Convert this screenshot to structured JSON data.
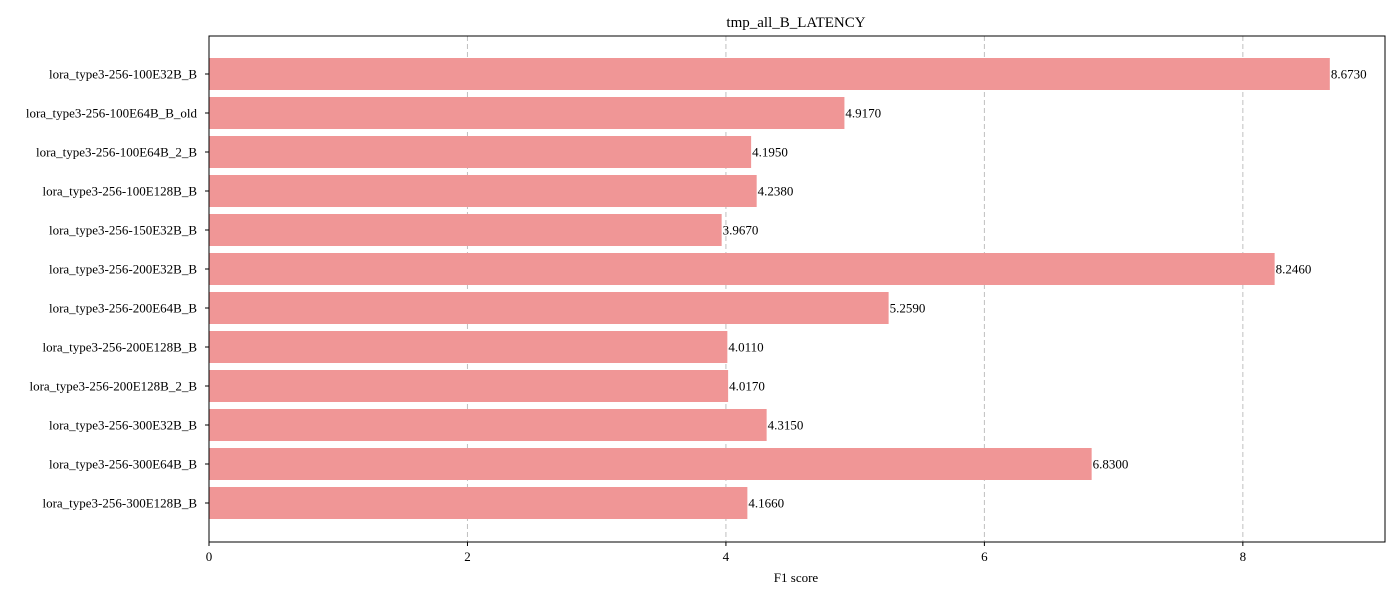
{
  "chart_data": {
    "type": "bar",
    "orientation": "horizontal",
    "title": "tmp_all_B_LATENCY",
    "xlabel": "F1 score",
    "ylabel": "",
    "xlim": [
      0,
      9.1
    ],
    "x_ticks": [
      0,
      2,
      4,
      6,
      8
    ],
    "grid": "vertical-dashed",
    "bar_color": "#F09696",
    "categories": [
      "lora_type3-256-100E32B_B",
      "lora_type3-256-100E64B_B_old",
      "lora_type3-256-100E64B_2_B",
      "lora_type3-256-100E128B_B",
      "lora_type3-256-150E32B_B",
      "lora_type3-256-200E32B_B",
      "lora_type3-256-200E64B_B",
      "lora_type3-256-200E128B_B",
      "lora_type3-256-200E128B_2_B",
      "lora_type3-256-300E32B_B",
      "lora_type3-256-300E64B_B",
      "lora_type3-256-300E128B_B"
    ],
    "values": [
      8.673,
      4.917,
      4.195,
      4.238,
      3.967,
      8.246,
      5.259,
      4.011,
      4.017,
      4.315,
      6.83,
      4.166
    ],
    "value_labels": [
      "8.6730",
      "4.9170",
      "4.1950",
      "4.2380",
      "3.9670",
      "8.2460",
      "5.2590",
      "4.0110",
      "4.0170",
      "4.3150",
      "6.8300",
      "4.1660"
    ]
  }
}
